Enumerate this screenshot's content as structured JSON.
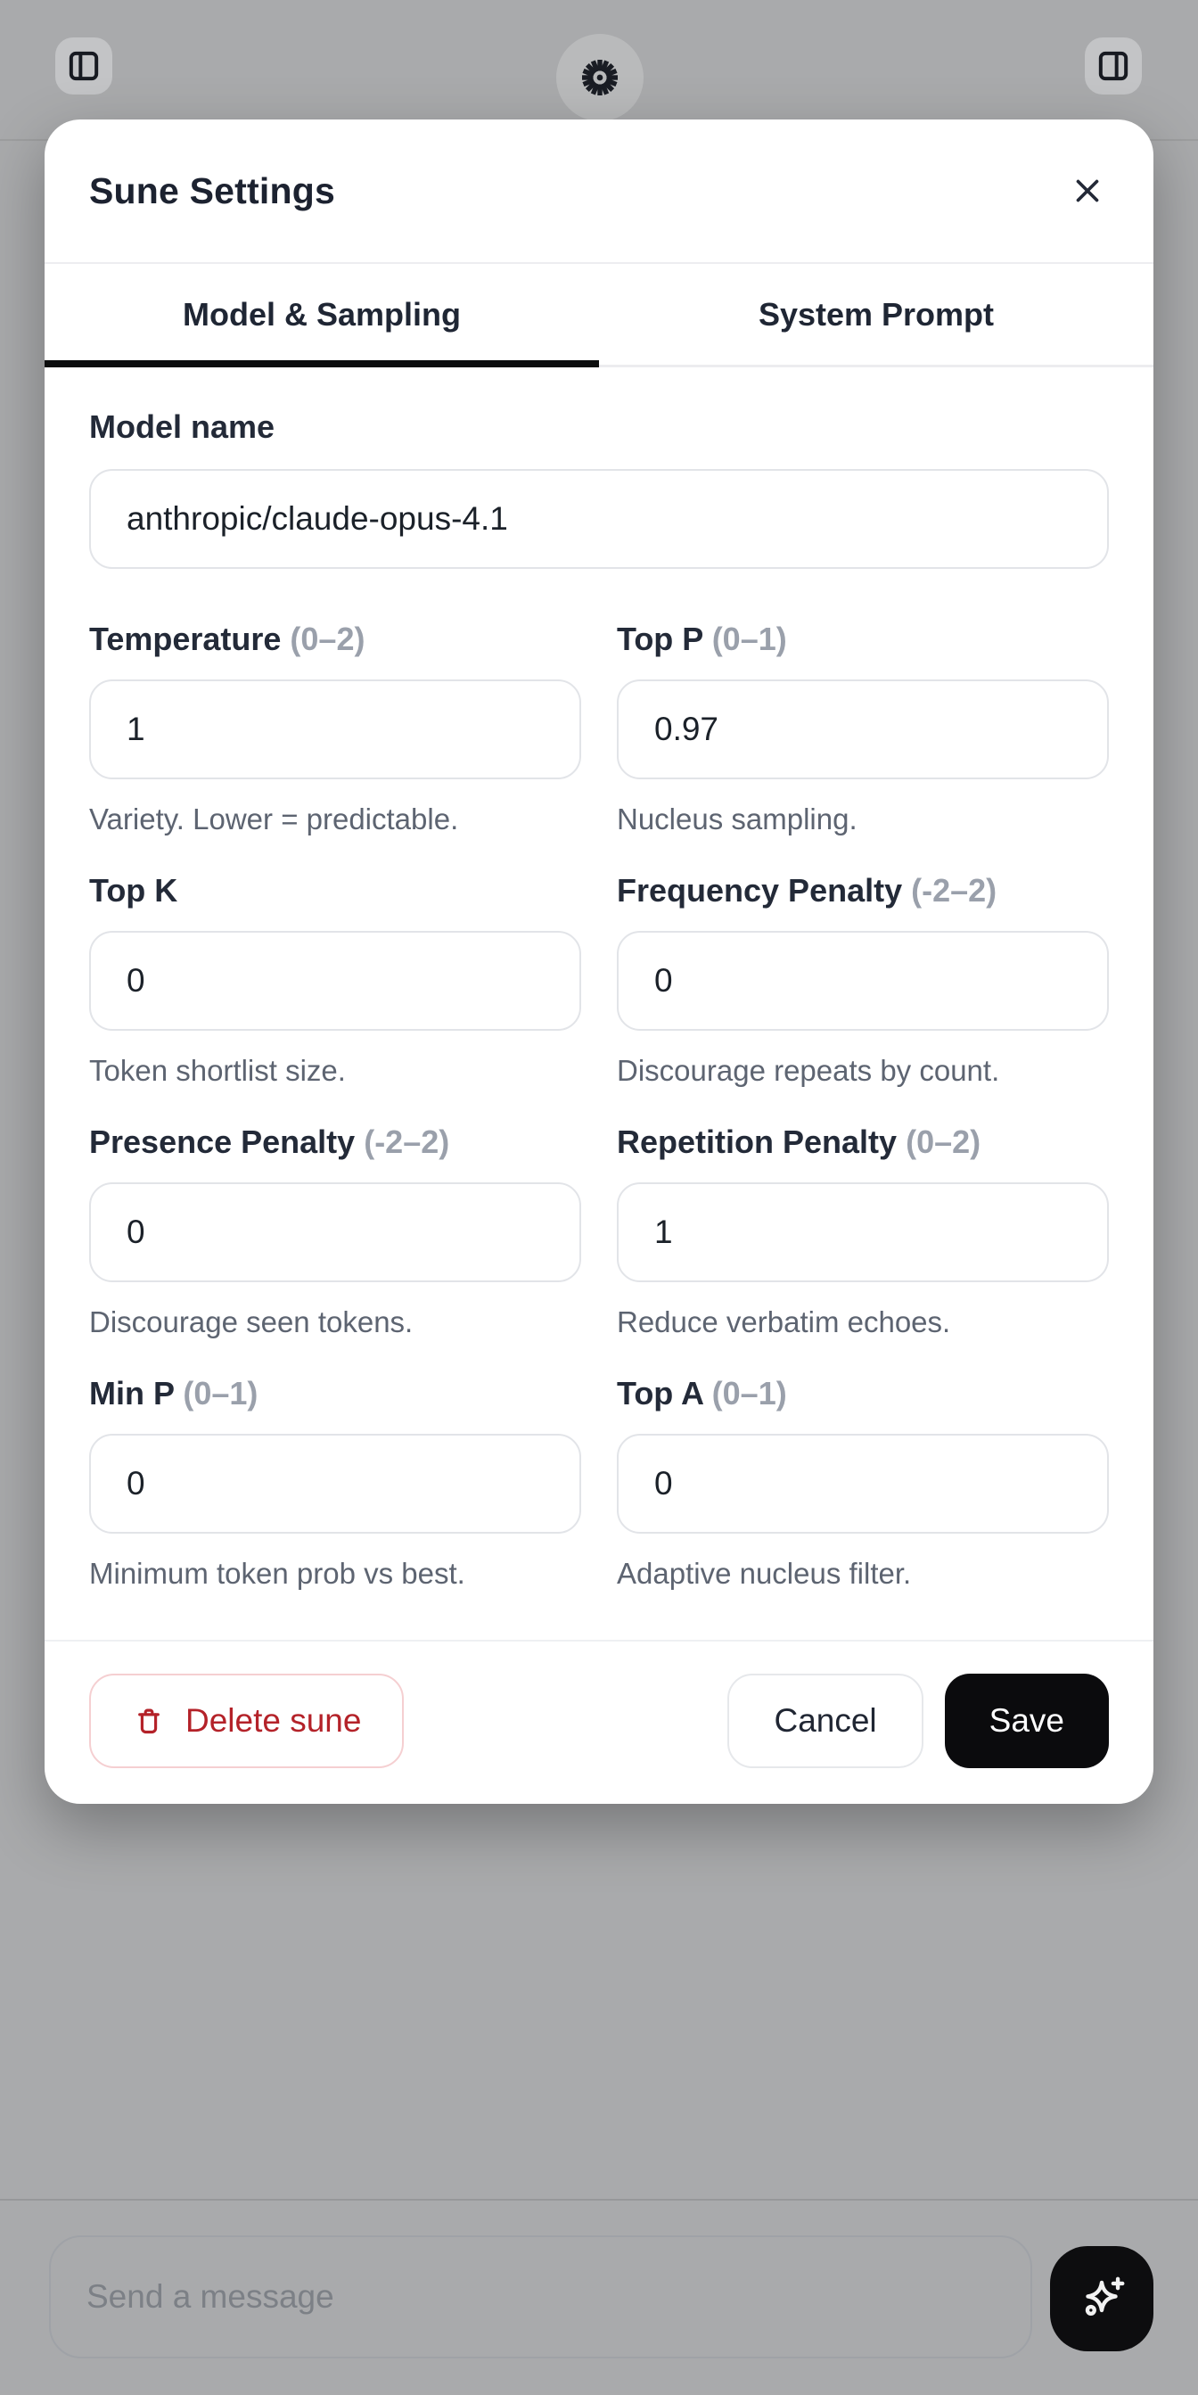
{
  "topbar": {
    "left_button_icon": "panel-left-icon",
    "center_button_icon": "starburst-icon",
    "right_button_icon": "panel-right-icon"
  },
  "modal": {
    "title": "Sune Settings",
    "tabs": [
      {
        "label": "Model & Sampling",
        "active": true
      },
      {
        "label": "System Prompt",
        "active": false
      }
    ],
    "model_field": {
      "label": "Model name",
      "value": "anthropic/claude-opus-4.1"
    },
    "fields": [
      {
        "label": "Temperature",
        "range": "(0–2)",
        "value": "1",
        "helper": "Variety. Lower = predictable."
      },
      {
        "label": "Top P",
        "range": "(0–1)",
        "value": "0.97",
        "helper": "Nucleus sampling."
      },
      {
        "label": "Top K",
        "range": "",
        "value": "0",
        "helper": "Token shortlist size."
      },
      {
        "label": "Frequency Penalty",
        "range": "(-2–2)",
        "value": "0",
        "helper": "Discourage repeats by count."
      },
      {
        "label": "Presence Penalty",
        "range": "(-2–2)",
        "value": "0",
        "helper": "Discourage seen tokens."
      },
      {
        "label": "Repetition Penalty",
        "range": "(0–2)",
        "value": "1",
        "helper": "Reduce verbatim echoes."
      },
      {
        "label": "Min P",
        "range": "(0–1)",
        "value": "0",
        "helper": "Minimum token prob vs best."
      },
      {
        "label": "Top A",
        "range": "(0–1)",
        "value": "0",
        "helper": "Adaptive nucleus filter."
      }
    ],
    "footer": {
      "delete_label": "Delete sune",
      "cancel_label": "Cancel",
      "save_label": "Save"
    }
  },
  "composer": {
    "placeholder": "Send a message"
  },
  "colors": {
    "backdrop": "#a9aaac",
    "modal_bg": "#ffffff",
    "accent_dark": "#0b0b0d",
    "danger": "#b42229",
    "tab_underline": "#0c0d0e",
    "helper_text": "#5d6471",
    "input_border": "#e2e4e8"
  }
}
